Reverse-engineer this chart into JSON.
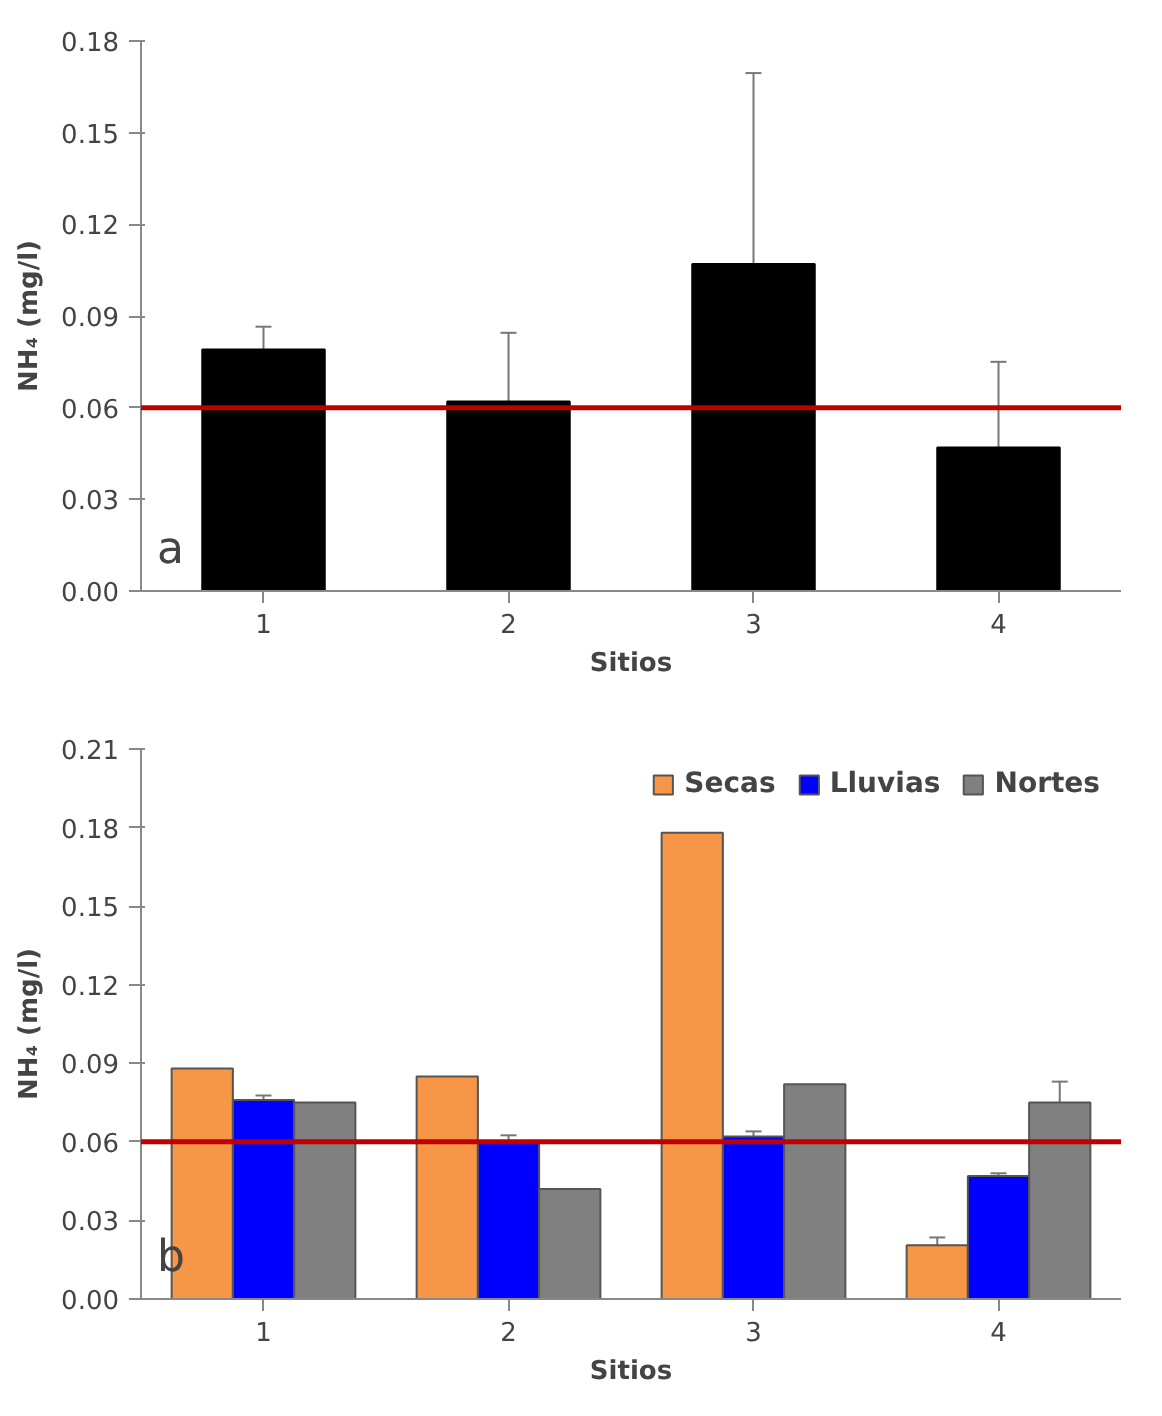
{
  "chart_data": [
    {
      "type": "bar",
      "categories": [
        "1",
        "2",
        "3",
        "4"
      ],
      "xlabel": "Sitios",
      "ylabel": "NH₄ (mg/l)",
      "ylim": [
        0,
        0.18
      ],
      "yticks": [
        {
          "value": 0,
          "label": "0.00"
        },
        0.03,
        0.06,
        0.09,
        0.12,
        0.15,
        0.18
      ],
      "series": [
        {
          "color": "#000000",
          "values": [
            0.079,
            0.062,
            0.107,
            0.047
          ],
          "errors": [
            0.0075,
            0.0225,
            0.0625,
            0.028
          ]
        }
      ],
      "ref_lines": [
        {
          "axis": "y",
          "value": 0.06,
          "color": "#c00000"
        }
      ],
      "annotations": [
        "a"
      ],
      "grid": false,
      "legend": false
    },
    {
      "type": "bar",
      "categories": [
        "1",
        "2",
        "3",
        "4"
      ],
      "xlabel": "Sitios",
      "ylabel": "NH₄ (mg/l)",
      "ylim": [
        0,
        0.21
      ],
      "yticks": [
        {
          "value": 0,
          "label": "0.00"
        },
        0.03,
        0.06,
        0.09,
        0.12,
        0.15,
        0.18,
        0.21
      ],
      "series": [
        {
          "name": "Secas",
          "color": "#f79646",
          "values": [
            0.088,
            0.085,
            0.178,
            0.0205
          ],
          "errors": [
            null,
            null,
            null,
            0.003
          ]
        },
        {
          "name": "Lluvias",
          "color": "#0000ff",
          "values": [
            0.076,
            0.06,
            0.062,
            0.047
          ],
          "errors": [
            0.0017,
            0.0025,
            0.002,
            0.001
          ]
        },
        {
          "name": "Nortes",
          "color": "#808080",
          "values": [
            0.075,
            0.042,
            0.082,
            0.075
          ],
          "errors": [
            null,
            null,
            null,
            0.008
          ]
        }
      ],
      "ref_lines": [
        {
          "axis": "y",
          "value": 0.06,
          "color": "#c00000"
        }
      ],
      "annotations": [
        "b"
      ],
      "grid": false,
      "legend": "top right"
    }
  ]
}
